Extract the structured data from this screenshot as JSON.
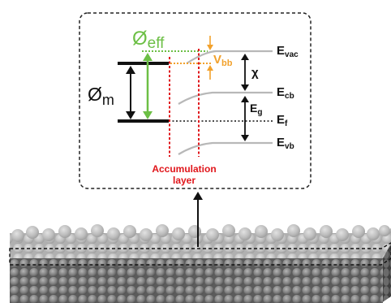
{
  "labels": {
    "phi_eff": {
      "base": "Ø",
      "sub": "eff"
    },
    "phi_m": {
      "base": "Ø",
      "sub": "m"
    },
    "v_bb": {
      "base": "V",
      "sub": "bb"
    },
    "chi": "χ",
    "e_g": {
      "base": "E",
      "sub": "g"
    },
    "e_vac": {
      "base": "E",
      "sub": "vac"
    },
    "e_cb": {
      "base": "E",
      "sub": "cb"
    },
    "e_f": {
      "base": "E",
      "sub": "f"
    },
    "e_vb": {
      "base": "E",
      "sub": "vb"
    },
    "accumulation_line1": "Accumulation",
    "accumulation_line2": "layer"
  },
  "colors": {
    "green": "#6cbf45",
    "orange": "#f2a12c",
    "red": "#e0161b",
    "band": "#b8b8b8",
    "black": "#111111"
  }
}
